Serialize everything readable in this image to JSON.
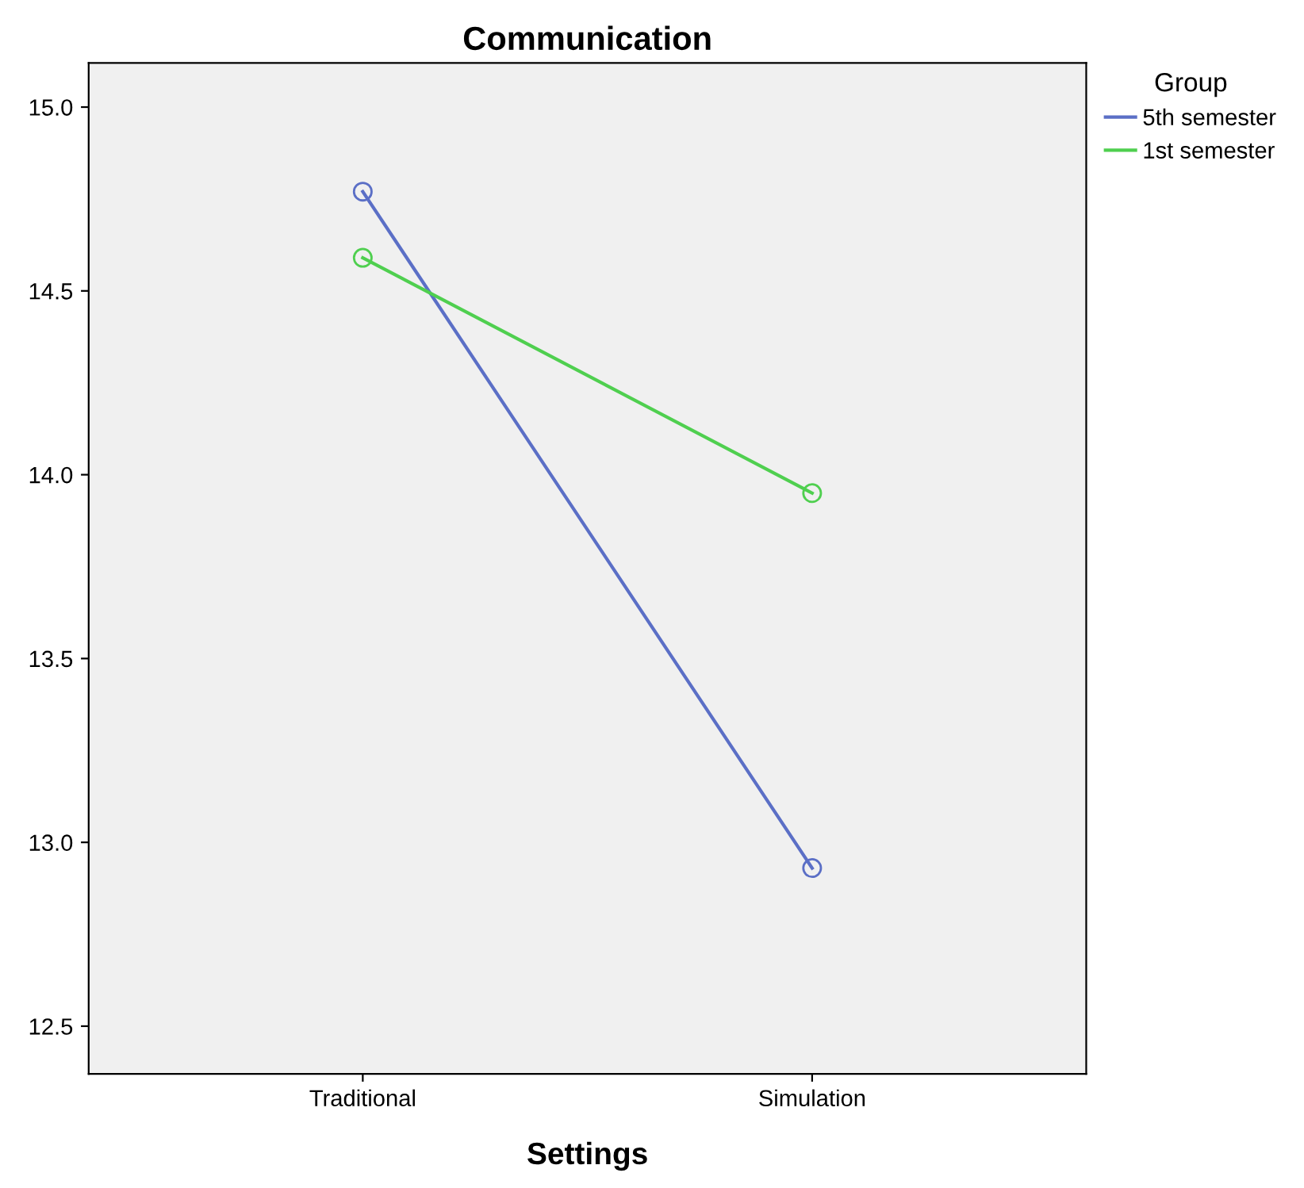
{
  "chart_data": {
    "type": "line",
    "title": "Communication",
    "xlabel": "Settings",
    "legend_title": "Group",
    "legend": "right",
    "marker": "circle",
    "line_style": "solid",
    "grid": false,
    "categories": [
      "Traditional",
      "Simulation"
    ],
    "series": [
      {
        "name": "5th semester",
        "color": "#5b6fc6",
        "values": [
          14.77,
          12.93
        ]
      },
      {
        "name": "1st semester",
        "color": "#4fcf4f",
        "values": [
          14.59,
          13.95
        ]
      }
    ],
    "ylim": [
      12.37,
      15.12
    ],
    "yticks": [
      12.5,
      {
        "value": 13,
        "label": "13.0"
      },
      13.5,
      {
        "value": 14,
        "label": "14.0"
      },
      14.5,
      {
        "value": 15,
        "label": "15.0"
      }
    ]
  }
}
